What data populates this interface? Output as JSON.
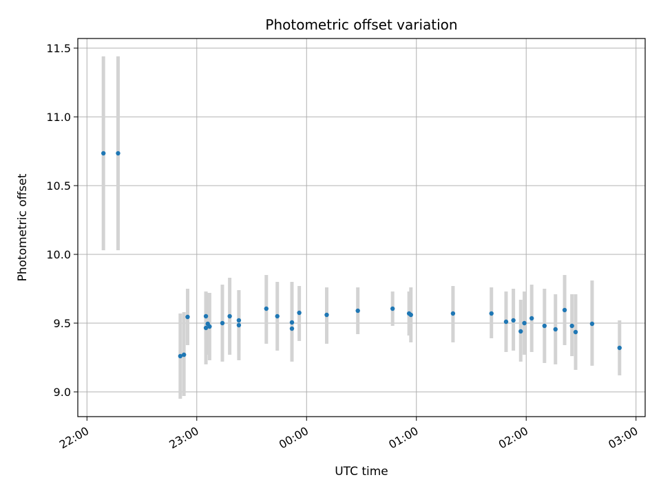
{
  "chart_data": {
    "type": "scatter",
    "title": "Photometric offset variation",
    "xlabel": "UTC time",
    "ylabel": "Photometric offset",
    "x_format": "HH:MM",
    "xlim": [
      "21:55",
      "03:05"
    ],
    "ylim": [
      8.82,
      11.57
    ],
    "x_ticks": [
      "22:00",
      "23:00",
      "00:00",
      "01:00",
      "02:00",
      "03:00"
    ],
    "y_ticks": [
      9.0,
      9.5,
      10.0,
      10.5,
      11.0,
      11.5
    ],
    "y_tick_labels": [
      "9.0",
      "9.5",
      "10.0",
      "10.5",
      "11.0",
      "11.5"
    ],
    "grid": true,
    "point_color": "#1f77b4",
    "errorbar_color": "#d3d3d3",
    "points": [
      {
        "x": "22:09",
        "y": 10.735,
        "lo": 10.03,
        "hi": 11.44
      },
      {
        "x": "22:17",
        "y": 10.735,
        "lo": 10.03,
        "hi": 11.44
      },
      {
        "x": "22:51",
        "y": 9.26,
        "lo": 8.95,
        "hi": 9.57
      },
      {
        "x": "22:53",
        "y": 9.27,
        "lo": 8.97,
        "hi": 9.58
      },
      {
        "x": "22:55",
        "y": 9.545,
        "lo": 9.34,
        "hi": 9.75
      },
      {
        "x": "23:05",
        "y": 9.55,
        "lo": 9.38,
        "hi": 9.73
      },
      {
        "x": "23:05",
        "y": 9.465,
        "lo": 9.2,
        "hi": 9.73
      },
      {
        "x": "23:06",
        "y": 9.495,
        "lo": 9.27,
        "hi": 9.72
      },
      {
        "x": "23:07",
        "y": 9.475,
        "lo": 9.23,
        "hi": 9.72
      },
      {
        "x": "23:14",
        "y": 9.5,
        "lo": 9.22,
        "hi": 9.78
      },
      {
        "x": "23:18",
        "y": 9.55,
        "lo": 9.27,
        "hi": 9.83
      },
      {
        "x": "23:23",
        "y": 9.485,
        "lo": 9.23,
        "hi": 9.74
      },
      {
        "x": "23:23",
        "y": 9.52,
        "lo": 9.3,
        "hi": 9.74
      },
      {
        "x": "23:38",
        "y": 9.605,
        "lo": 9.35,
        "hi": 9.85
      },
      {
        "x": "23:44",
        "y": 9.55,
        "lo": 9.3,
        "hi": 9.8
      },
      {
        "x": "23:52",
        "y": 9.46,
        "lo": 9.22,
        "hi": 9.7
      },
      {
        "x": "23:52",
        "y": 9.505,
        "lo": 9.22,
        "hi": 9.8
      },
      {
        "x": "23:56",
        "y": 9.575,
        "lo": 9.37,
        "hi": 9.77
      },
      {
        "x": "00:11",
        "y": 9.56,
        "lo": 9.35,
        "hi": 9.76
      },
      {
        "x": "00:28",
        "y": 9.59,
        "lo": 9.42,
        "hi": 9.76
      },
      {
        "x": "00:47",
        "y": 9.605,
        "lo": 9.48,
        "hi": 9.73
      },
      {
        "x": "00:56",
        "y": 9.57,
        "lo": 9.41,
        "hi": 9.73
      },
      {
        "x": "00:57",
        "y": 9.56,
        "lo": 9.36,
        "hi": 9.76
      },
      {
        "x": "01:20",
        "y": 9.57,
        "lo": 9.36,
        "hi": 9.77
      },
      {
        "x": "01:41",
        "y": 9.57,
        "lo": 9.39,
        "hi": 9.76
      },
      {
        "x": "01:49",
        "y": 9.51,
        "lo": 9.29,
        "hi": 9.73
      },
      {
        "x": "01:53",
        "y": 9.52,
        "lo": 9.3,
        "hi": 9.75
      },
      {
        "x": "01:57",
        "y": 9.44,
        "lo": 9.22,
        "hi": 9.67
      },
      {
        "x": "01:59",
        "y": 9.5,
        "lo": 9.27,
        "hi": 9.73
      },
      {
        "x": "02:03",
        "y": 9.535,
        "lo": 9.29,
        "hi": 9.78
      },
      {
        "x": "02:10",
        "y": 9.48,
        "lo": 9.21,
        "hi": 9.75
      },
      {
        "x": "02:16",
        "y": 9.455,
        "lo": 9.2,
        "hi": 9.71
      },
      {
        "x": "02:21",
        "y": 9.595,
        "lo": 9.34,
        "hi": 9.85
      },
      {
        "x": "02:25",
        "y": 9.48,
        "lo": 9.26,
        "hi": 9.71
      },
      {
        "x": "02:27",
        "y": 9.435,
        "lo": 9.16,
        "hi": 9.71
      },
      {
        "x": "02:36",
        "y": 9.495,
        "lo": 9.19,
        "hi": 9.81
      },
      {
        "x": "02:51",
        "y": 9.32,
        "lo": 9.12,
        "hi": 9.52
      }
    ]
  }
}
